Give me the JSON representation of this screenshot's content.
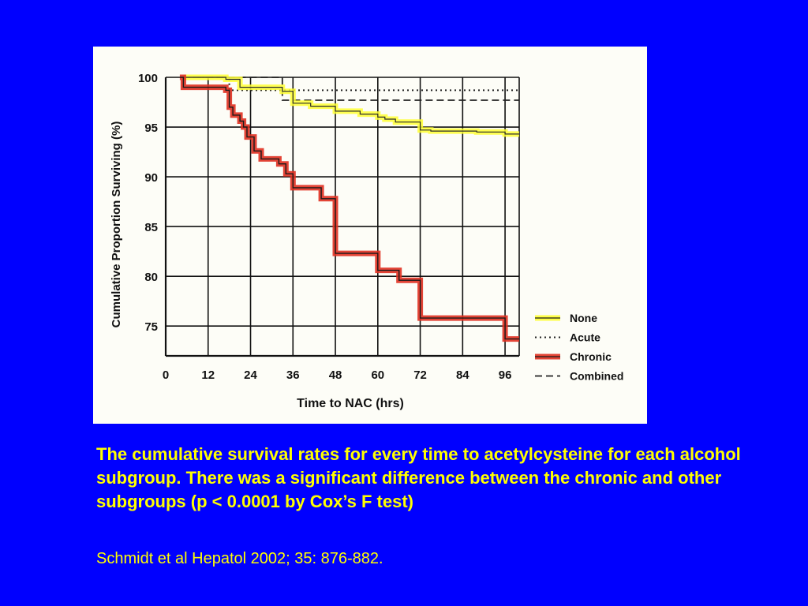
{
  "slide": {
    "caption": "The cumulative survival rates for every time to acetylcysteine for each alcohol subgroup.  There was a significant difference between the chronic and other subgroups (p < 0.0001 by Cox’s F test)",
    "citation": "Schmidt et al Hepatol 2002; 35: 876-882."
  },
  "chart_data": {
    "type": "line",
    "title": "",
    "xlabel": "Time to NAC (hrs)",
    "ylabel": "Cumulative Proportion Surviving (%)",
    "xlim": [
      0,
      100
    ],
    "ylim": [
      72,
      100
    ],
    "x_ticks": [
      0,
      12,
      24,
      36,
      48,
      60,
      72,
      84,
      96
    ],
    "y_ticks": [
      75,
      80,
      85,
      90,
      95,
      100
    ],
    "grid": true,
    "legend_position": "bottom-right",
    "series": [
      {
        "name": "None",
        "style": "solid",
        "color": "#ffff33",
        "x": [
          5,
          17,
          21,
          33,
          36,
          41,
          48,
          55,
          60,
          62,
          65,
          72,
          75,
          80,
          88,
          96,
          100
        ],
        "y": [
          100,
          99.8,
          99.0,
          98.6,
          97.4,
          97.1,
          96.6,
          96.3,
          96.0,
          95.8,
          95.5,
          94.7,
          94.6,
          94.6,
          94.5,
          94.3,
          94.3
        ]
      },
      {
        "name": "Acute",
        "style": "dotted",
        "color": "#222222",
        "x": [
          5,
          18,
          100
        ],
        "y": [
          100,
          98.7,
          98.7
        ]
      },
      {
        "name": "Chronic",
        "style": "solid",
        "color": "#e03020",
        "x": [
          4,
          5,
          17,
          18,
          19,
          21,
          22,
          23,
          25,
          27,
          32,
          34,
          36,
          44,
          48,
          60,
          66,
          72,
          96,
          100
        ],
        "y": [
          100,
          99,
          98.7,
          97,
          96.2,
          95.6,
          95,
          94,
          92.6,
          91.8,
          91.3,
          90.3,
          88.9,
          87.8,
          82.3,
          80.6,
          79.6,
          75.8,
          73.7,
          73.7
        ]
      },
      {
        "name": "Combined",
        "style": "dashed",
        "color": "#222222",
        "x": [
          5,
          33,
          100
        ],
        "y": [
          100,
          97.7,
          97.7
        ]
      }
    ]
  }
}
